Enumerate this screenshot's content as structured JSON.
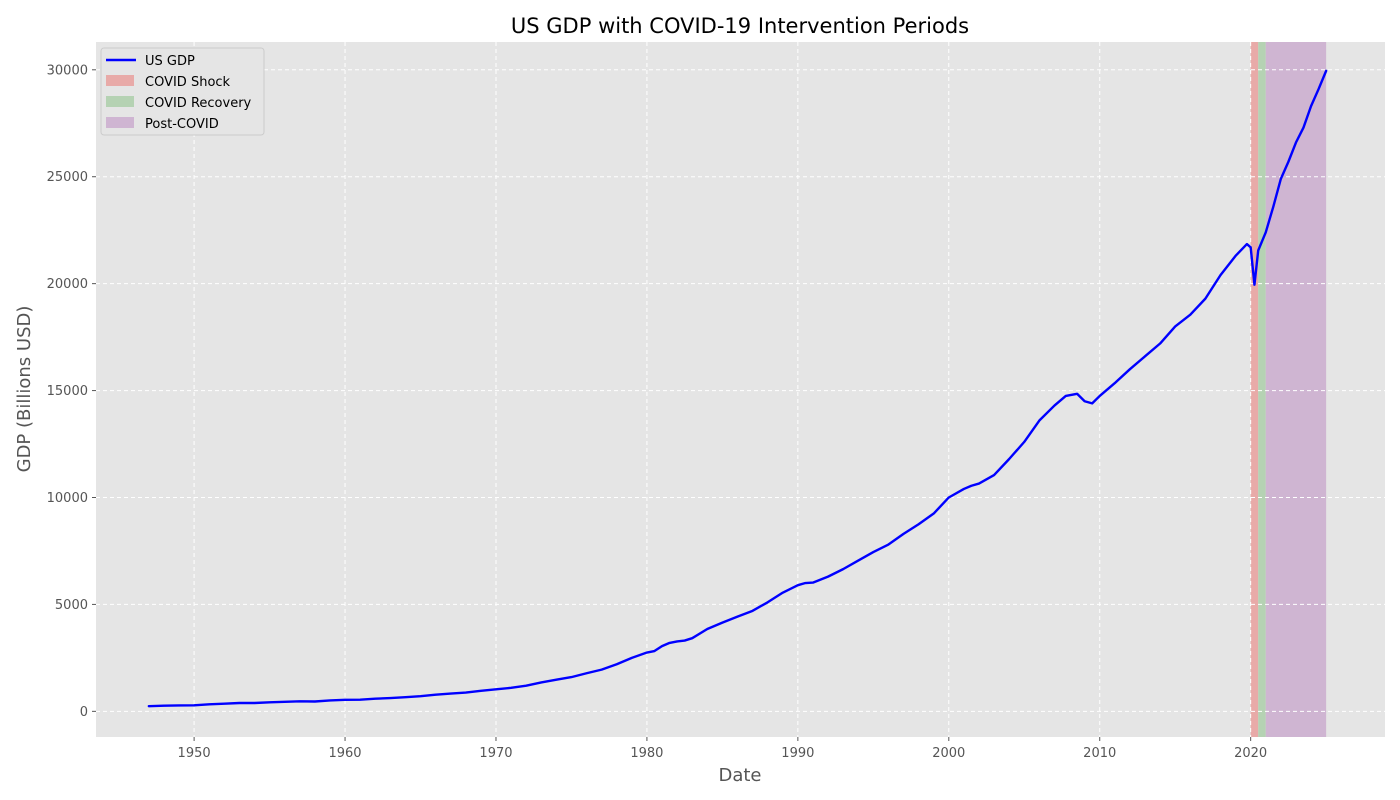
{
  "chart_data": {
    "type": "line",
    "title": "US GDP with COVID-19 Intervention Periods",
    "xlabel": "Date",
    "ylabel": "GDP (Billions USD)",
    "xlim": [
      1943.5,
      2028.9
    ],
    "ylim": [
      -1200,
      31300
    ],
    "xticks": [
      1950,
      1960,
      1970,
      1980,
      1990,
      2000,
      2010,
      2020
    ],
    "yticks": [
      0,
      5000,
      10000,
      15000,
      20000,
      25000,
      30000
    ],
    "grid": true,
    "legend_position": "top-left",
    "series": [
      {
        "name": "US GDP",
        "color": "#0000ff",
        "points": [
          [
            1947.0,
            243
          ],
          [
            1948.0,
            265
          ],
          [
            1949.0,
            275
          ],
          [
            1950.0,
            280
          ],
          [
            1951.0,
            330
          ],
          [
            1952.0,
            360
          ],
          [
            1953.0,
            390
          ],
          [
            1954.0,
            390
          ],
          [
            1955.0,
            420
          ],
          [
            1956.0,
            445
          ],
          [
            1957.0,
            470
          ],
          [
            1958.0,
            460
          ],
          [
            1959.0,
            510
          ],
          [
            1960.0,
            540
          ],
          [
            1961.0,
            545
          ],
          [
            1962.0,
            590
          ],
          [
            1963.0,
            620
          ],
          [
            1964.0,
            660
          ],
          [
            1965.0,
            710
          ],
          [
            1966.0,
            780
          ],
          [
            1967.0,
            830
          ],
          [
            1968.0,
            880
          ],
          [
            1969.0,
            960
          ],
          [
            1970.0,
            1030
          ],
          [
            1971.0,
            1100
          ],
          [
            1972.0,
            1200
          ],
          [
            1973.0,
            1350
          ],
          [
            1974.0,
            1480
          ],
          [
            1975.0,
            1600
          ],
          [
            1976.0,
            1780
          ],
          [
            1977.0,
            1950
          ],
          [
            1978.0,
            2200
          ],
          [
            1979.0,
            2500
          ],
          [
            1980.0,
            2750
          ],
          [
            1980.5,
            2820
          ],
          [
            1981.0,
            3050
          ],
          [
            1981.5,
            3200
          ],
          [
            1982.0,
            3270
          ],
          [
            1982.5,
            3310
          ],
          [
            1983.0,
            3420
          ],
          [
            1984.0,
            3850
          ],
          [
            1985.0,
            4150
          ],
          [
            1986.0,
            4430
          ],
          [
            1987.0,
            4700
          ],
          [
            1988.0,
            5100
          ],
          [
            1989.0,
            5550
          ],
          [
            1990.0,
            5900
          ],
          [
            1990.5,
            6000
          ],
          [
            1991.0,
            6020
          ],
          [
            1992.0,
            6300
          ],
          [
            1993.0,
            6650
          ],
          [
            1994.0,
            7050
          ],
          [
            1995.0,
            7450
          ],
          [
            1996.0,
            7800
          ],
          [
            1997.0,
            8300
          ],
          [
            1998.0,
            8750
          ],
          [
            1999.0,
            9250
          ],
          [
            2000.0,
            10000
          ],
          [
            2001.0,
            10400
          ],
          [
            2001.5,
            10550
          ],
          [
            2002.0,
            10650
          ],
          [
            2003.0,
            11050
          ],
          [
            2004.0,
            11800
          ],
          [
            2005.0,
            12600
          ],
          [
            2006.0,
            13600
          ],
          [
            2007.0,
            14300
          ],
          [
            2007.75,
            14750
          ],
          [
            2008.5,
            14850
          ],
          [
            2009.0,
            14500
          ],
          [
            2009.5,
            14400
          ],
          [
            2010.0,
            14750
          ],
          [
            2011.0,
            15350
          ],
          [
            2012.0,
            16000
          ],
          [
            2013.0,
            16600
          ],
          [
            2014.0,
            17200
          ],
          [
            2015.0,
            18000
          ],
          [
            2016.0,
            18550
          ],
          [
            2017.0,
            19300
          ],
          [
            2018.0,
            20400
          ],
          [
            2019.0,
            21300
          ],
          [
            2019.75,
            21850
          ],
          [
            2020.0,
            21700
          ],
          [
            2020.25,
            19950
          ],
          [
            2020.5,
            21550
          ],
          [
            2021.0,
            22400
          ],
          [
            2021.5,
            23600
          ],
          [
            2022.0,
            24900
          ],
          [
            2022.5,
            25700
          ],
          [
            2023.0,
            26600
          ],
          [
            2023.5,
            27300
          ],
          [
            2024.0,
            28300
          ],
          [
            2024.5,
            29100
          ],
          [
            2025.0,
            29950
          ]
        ]
      }
    ],
    "shaded_periods": [
      {
        "name": "COVID Shock",
        "start": 2020.0,
        "end": 2020.5,
        "color": "#e8aaa8"
      },
      {
        "name": "COVID Recovery",
        "start": 2020.5,
        "end": 2021.0,
        "color": "#b5d2b3"
      },
      {
        "name": "Post-COVID",
        "start": 2021.0,
        "end": 2025.0,
        "color": "#cfb5d2"
      }
    ],
    "legend_entries": [
      "US GDP",
      "COVID Shock",
      "COVID Recovery",
      "Post-COVID"
    ]
  },
  "colors": {
    "plot_background": "#e5e5e5",
    "grid": "#ffffff",
    "line": "#0000ff"
  }
}
